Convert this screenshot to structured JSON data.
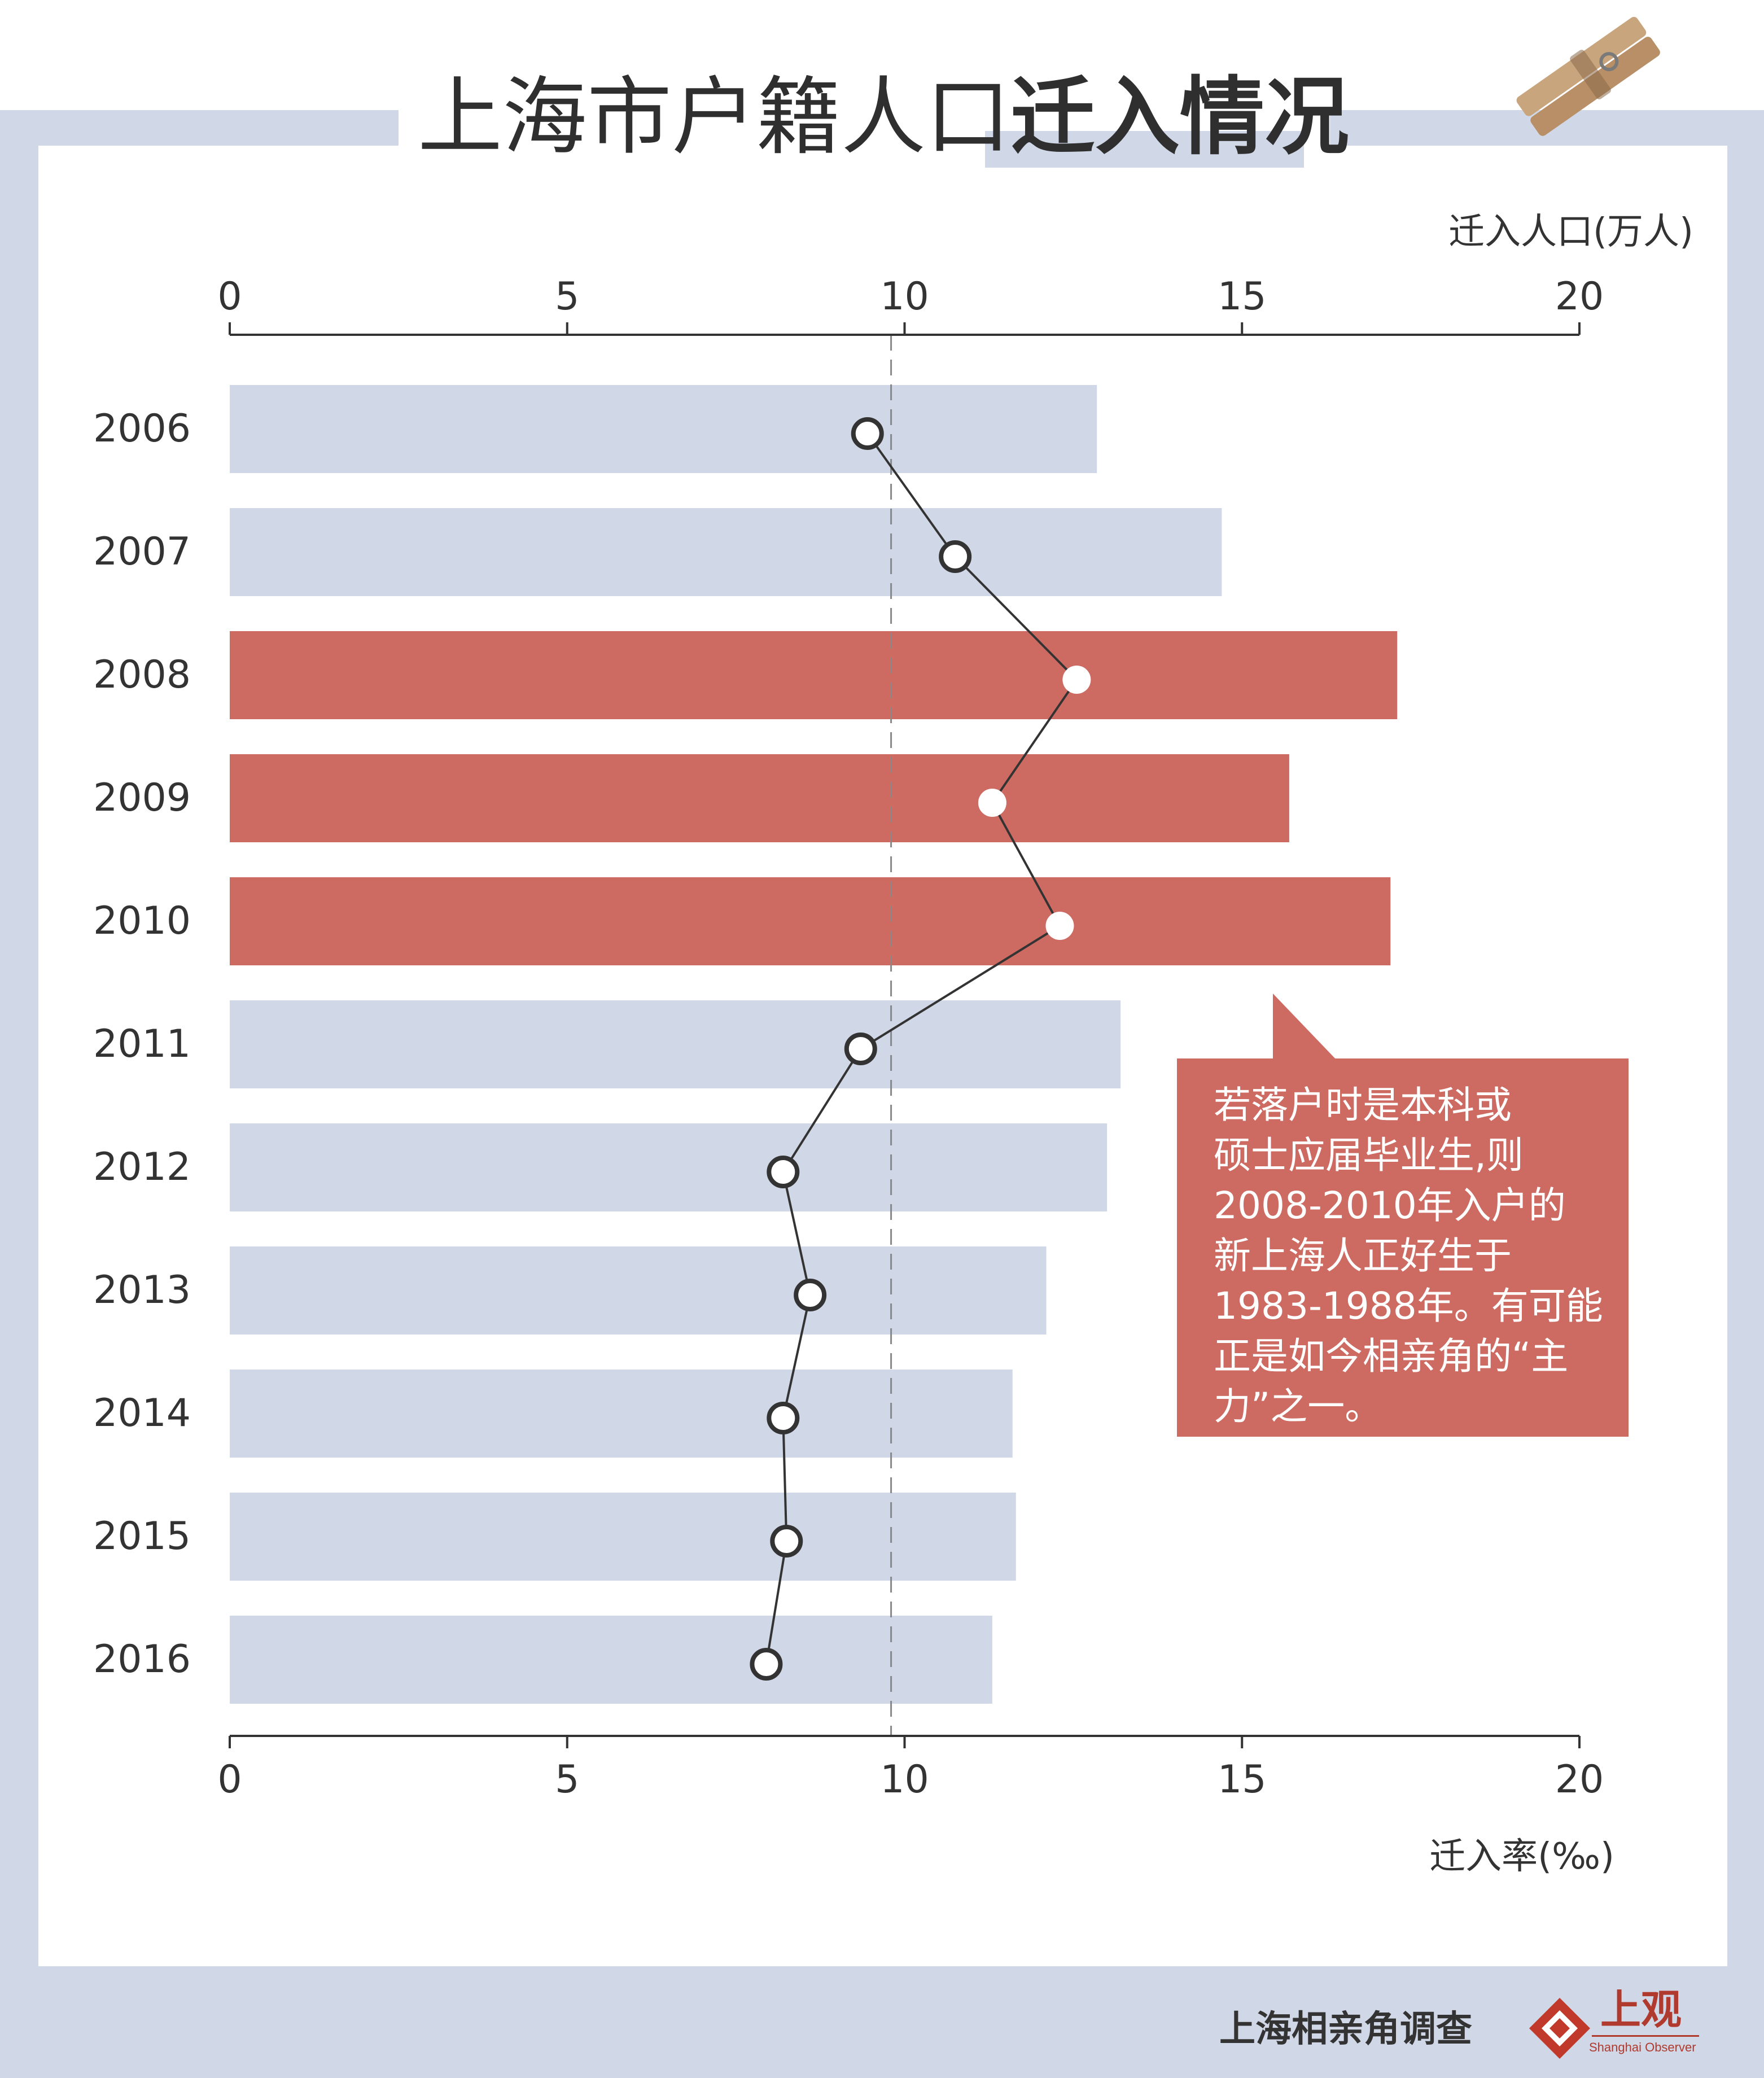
{
  "header": {
    "title_normal": "上海市户籍人口",
    "title_bold": "迁入情况"
  },
  "chart_data": {
    "type": "bar",
    "title": "上海市户籍人口迁入情况",
    "top_axis_label": "迁入人口(万人)",
    "bottom_axis_label": "迁入率(‰)",
    "xlim": [
      0,
      20
    ],
    "ticks": [
      "0",
      "5",
      "10",
      "15",
      "20"
    ],
    "categories": [
      "2006",
      "2007",
      "2008",
      "2009",
      "2010",
      "2011",
      "2012",
      "2013",
      "2014",
      "2015",
      "2016"
    ],
    "series": [
      {
        "kind": "bar",
        "axis": "top",
        "values": [
          12.85,
          14.7,
          17.3,
          15.7,
          17.2,
          13.2,
          13.0,
          12.1,
          11.6,
          11.65,
          11.3
        ]
      },
      {
        "kind": "line",
        "axis": "bottom",
        "values": [
          9.45,
          10.75,
          12.55,
          11.3,
          12.3,
          9.35,
          8.2,
          8.6,
          8.2,
          8.25,
          7.95
        ]
      }
    ],
    "highlight_categories": [
      "2008",
      "2009",
      "2010"
    ],
    "reference_line": 9.8,
    "colors": {
      "bar": "#d0d7e6",
      "bar_highlight": "#cd6b62",
      "line": "#333333",
      "marker_fill": "#ffffff",
      "reference": "#888888"
    },
    "annotation": {
      "lines": [
        "若落户时是本科或",
        "硕士应届毕业生,则",
        "2008-2010年入户的",
        "新上海人正好生于",
        "1983-1988年。有可能",
        "正是如今相亲角的“主",
        "力”之一。"
      ]
    }
  },
  "footer": {
    "source": "上海相亲角调查",
    "brand": "上观",
    "brand_sub": "Shanghai Observer"
  }
}
